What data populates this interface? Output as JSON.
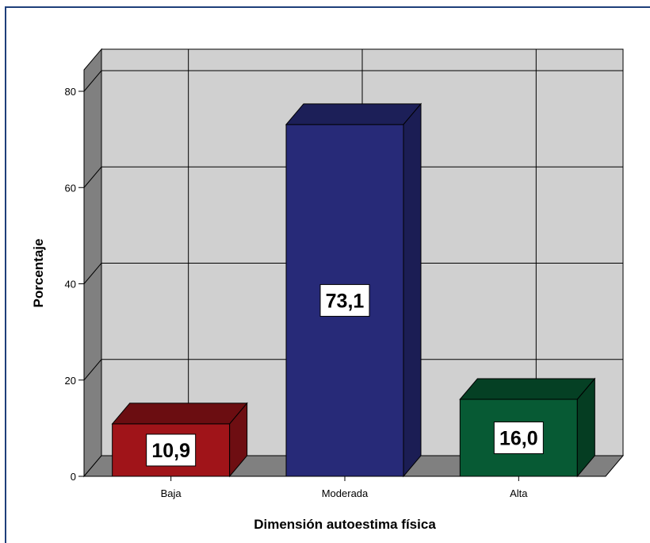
{
  "chart_data": {
    "type": "bar",
    "style": "3d",
    "categories": [
      "Baja",
      "Moderada",
      "Alta"
    ],
    "values": [
      10.9,
      73.1,
      16.0
    ],
    "data_labels": [
      "10,9",
      "73,1",
      "16,0"
    ],
    "xlabel": "Dimensión autoestima física",
    "ylabel": "Porcentaje",
    "ylim": [
      0,
      80
    ],
    "yticks": [
      0,
      20,
      40,
      60,
      80
    ],
    "ytick_labels": [
      "0",
      "20",
      "40",
      "60",
      "80"
    ],
    "grid": true,
    "legend": "none",
    "colors": {
      "bars": [
        "#a01419",
        "#272a78",
        "#075a34"
      ],
      "bar_tops": [
        "#6b0d11",
        "#1c1f58",
        "#054024"
      ],
      "bar_sides": [
        "#6e0e12",
        "#1b1d54",
        "#053d22"
      ],
      "back_wall": "#d0d0d0",
      "left_wall": "#808080",
      "floor": "#808080",
      "border": "#1f3f7a"
    }
  }
}
